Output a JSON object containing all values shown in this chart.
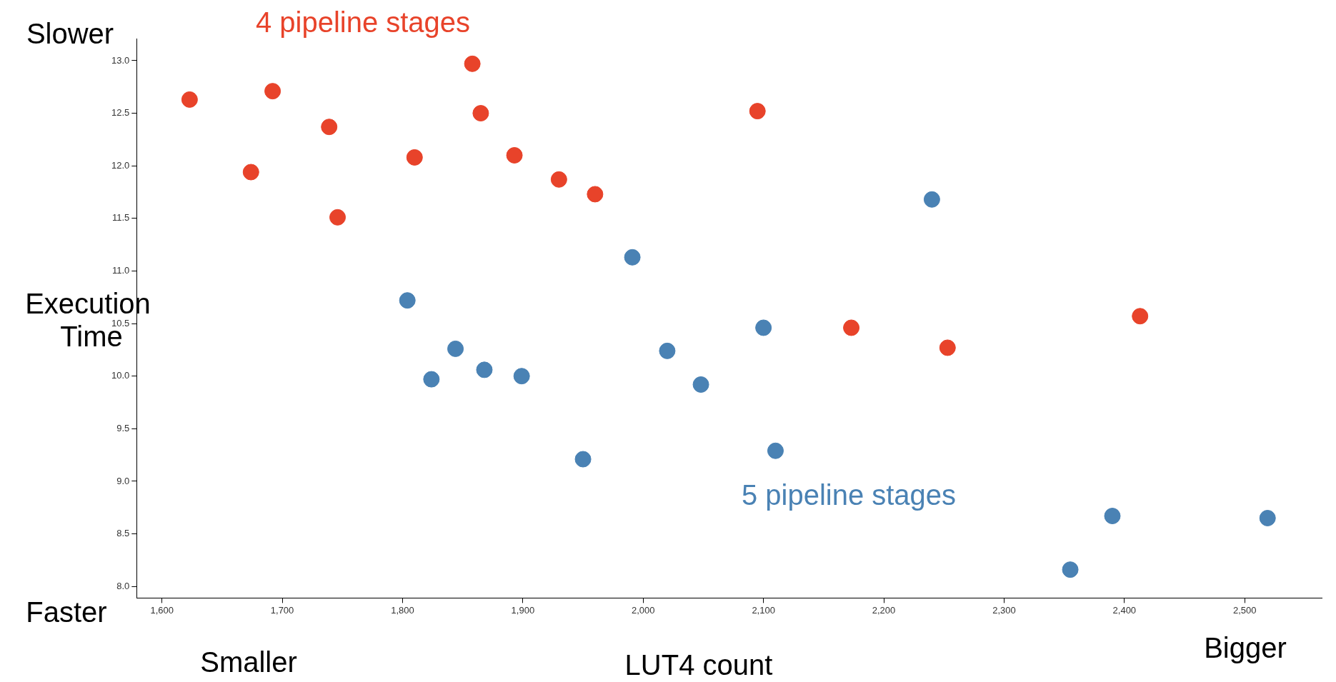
{
  "chart_data": {
    "type": "scatter",
    "xlabel": "LUT4 count",
    "ylabel": "Execution Time",
    "annotations": [
      "Slower",
      "Faster",
      "Smaller",
      "Bigger"
    ],
    "marker": "circle",
    "grid": false,
    "legend": false,
    "xlim": [
      1579,
      2564
    ],
    "ylim": [
      7.89,
      13.21
    ],
    "xticks": [
      {
        "value": 1600,
        "label": "1,600"
      },
      {
        "value": 1700,
        "label": "1,700"
      },
      {
        "value": 1800,
        "label": "1,800"
      },
      {
        "value": 1900,
        "label": "1,900"
      },
      {
        "value": 2000,
        "label": "2,000"
      },
      {
        "value": 2100,
        "label": "2,100"
      },
      {
        "value": 2200,
        "label": "2,200"
      },
      {
        "value": 2300,
        "label": "2,300"
      },
      {
        "value": 2400,
        "label": "2,400"
      },
      {
        "value": 2500,
        "label": "2,500"
      }
    ],
    "yticks": [
      {
        "value": 8,
        "label": "8.0"
      },
      {
        "value": 8.5,
        "label": "8.5"
      },
      {
        "value": 9,
        "label": "9.0"
      },
      {
        "value": 9.5,
        "label": "9.5"
      },
      {
        "value": 10,
        "label": "10.0"
      },
      {
        "value": 10.5,
        "label": "10.5"
      },
      {
        "value": 11,
        "label": "11.0"
      },
      {
        "value": 11.5,
        "label": "11.5"
      },
      {
        "value": 12,
        "label": "12.0"
      },
      {
        "value": 12.5,
        "label": "12.5"
      },
      {
        "value": 13,
        "label": "13.0"
      }
    ],
    "series": [
      {
        "name": "4 pipeline stages",
        "color": "#e8432a",
        "x": [
          1623,
          1674,
          1692,
          1739,
          1746,
          1810,
          1858,
          1865,
          1893,
          1930,
          1960,
          2095,
          2173,
          2253,
          2413
        ],
        "values": [
          12.63,
          11.94,
          12.71,
          12.37,
          11.51,
          12.08,
          12.97,
          12.5,
          12.1,
          11.87,
          11.73,
          12.52,
          10.46,
          10.27,
          10.57
        ]
      },
      {
        "name": "5 pipeline stages",
        "color": "#4a82b4",
        "x": [
          1804,
          1824,
          1844,
          1868,
          1899,
          1950,
          1991,
          2020,
          2048,
          2100,
          2110,
          2240,
          2355,
          2390,
          2519
        ],
        "values": [
          10.72,
          9.97,
          10.26,
          10.06,
          10.0,
          9.21,
          11.13,
          10.24,
          9.92,
          10.46,
          9.29,
          11.68,
          8.16,
          8.67,
          8.65
        ]
      }
    ]
  }
}
